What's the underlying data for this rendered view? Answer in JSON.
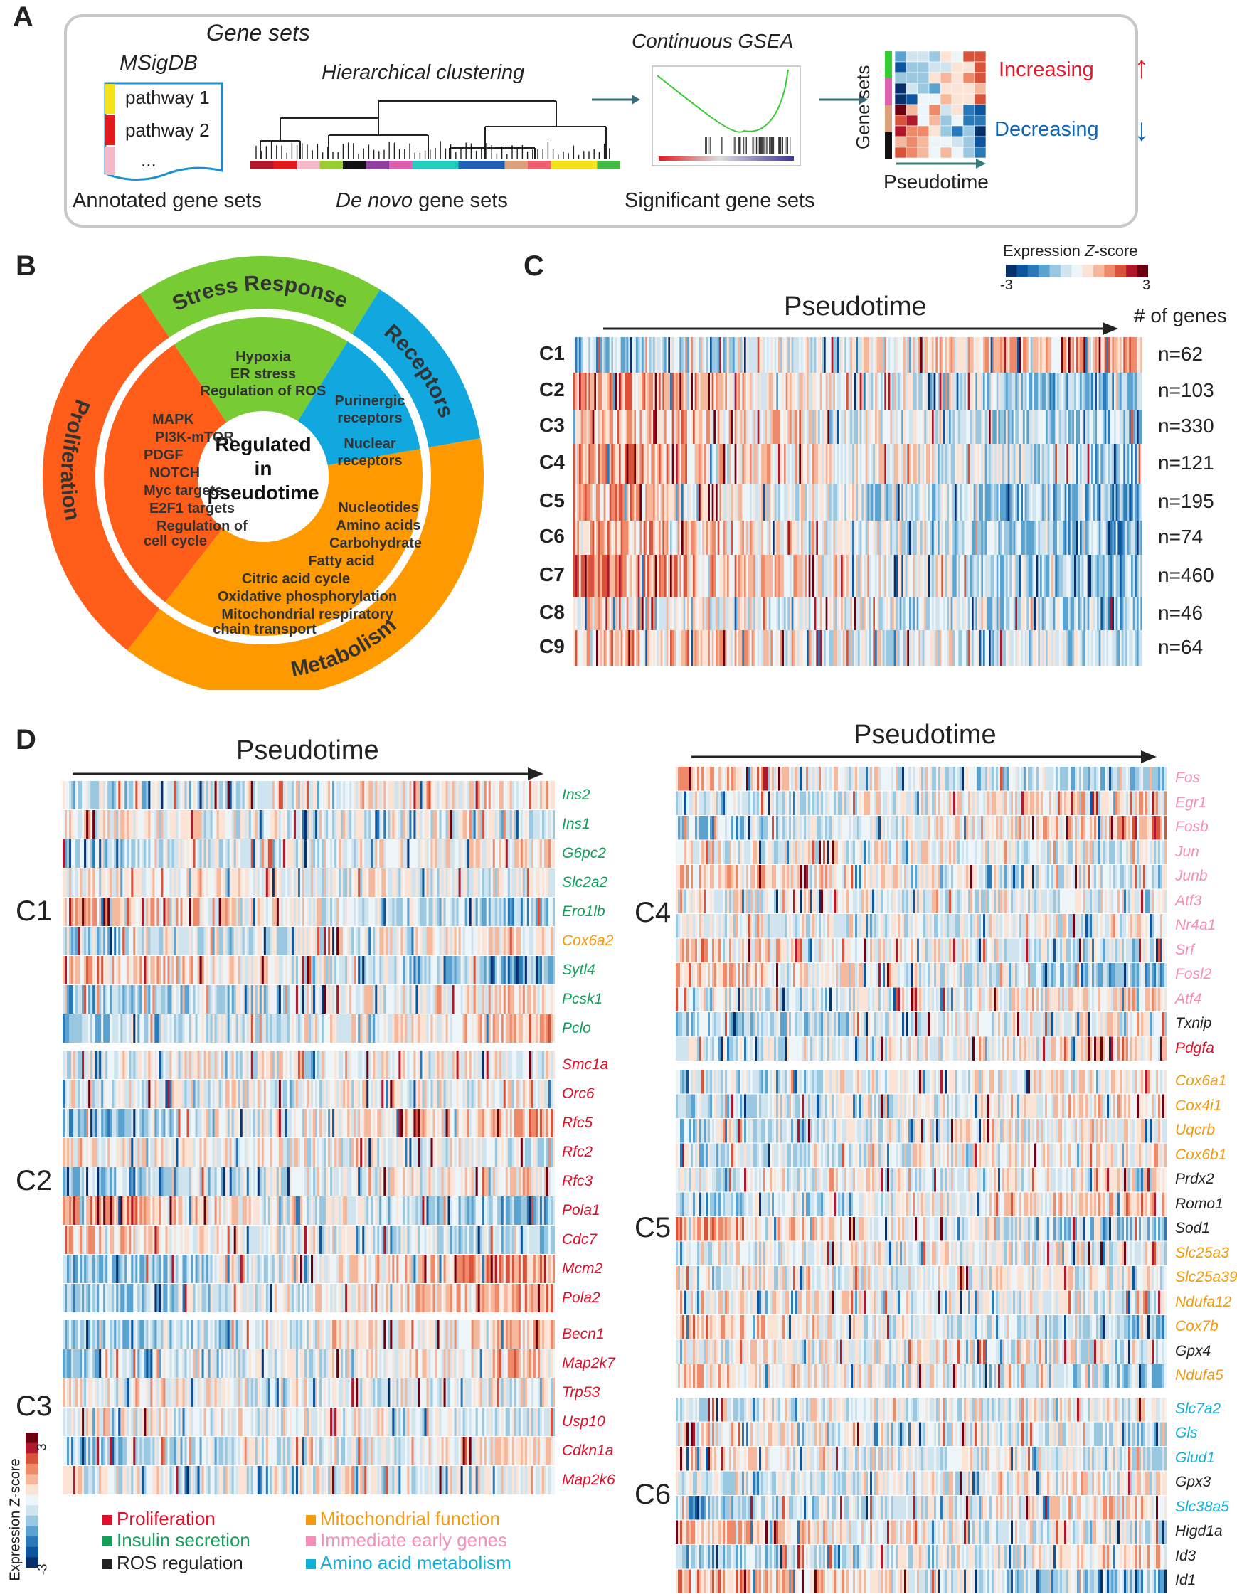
{
  "panels": {
    "a": "A",
    "b": "B",
    "c": "C",
    "d": "D"
  },
  "panelA": {
    "gene_sets": "Gene sets",
    "msigdb": "MSigDB",
    "pathway1": "pathway 1",
    "pathway2": "pathway 2",
    "ellipsis": "...",
    "annotated": "Annotated gene sets",
    "hier": "Hierarchical clustering",
    "denovo_italic": "De novo",
    "denovo_rest": " gene sets",
    "gsea": "Continuous GSEA",
    "significant": "Significant gene sets",
    "gene_sets_axis": "Gene sets",
    "pseudotime": "Pseudotime",
    "increasing": "Increasing",
    "decreasing": "Decreasing",
    "inc_arrow": "↑",
    "dec_arrow": "↓",
    "colors": {
      "red": "#e31a1c",
      "blue": "#1f78b4",
      "green": "#33cc33",
      "yellow": "#f5e21a"
    }
  },
  "panelB": {
    "center": [
      "Regulated",
      "in",
      "pseudotime"
    ],
    "outer": {
      "stress": "Stress Response",
      "receptors": "Receptors",
      "metabolism": "Metabolism",
      "proliferation": "Proliferation"
    },
    "stress_items": [
      "Hypoxia",
      "ER stress",
      "Regulation of ROS"
    ],
    "receptor_items": [
      "Purinergic",
      "receptors",
      "Nuclear",
      "receptors"
    ],
    "proliferation_items": [
      "MAPK",
      "PI3K-mTOR",
      "PDGF",
      "NOTCH",
      "Myc targets",
      "E2F1 targets",
      "Regulation of",
      "cell cycle"
    ],
    "metabolism_items": [
      "Nucleotides",
      "Amino acids",
      "Carbohydrate",
      "Fatty acid",
      "Citric acid cycle",
      "Oxidative phosphorylation",
      "Mitochondrial respiratory",
      "chain transport"
    ],
    "colors": {
      "stress": "#77cc33",
      "receptors": "#11a8e0",
      "metabolism": "#ff9900",
      "proliferation": "#ff5e1a"
    }
  },
  "panelC": {
    "legend_title_pre": "Expression ",
    "legend_title_z": "Z",
    "legend_title_post": "-score",
    "legend_min": "-3",
    "legend_max": "3",
    "pseudotime": "Pseudotime",
    "ngenes_header": "# of genes",
    "rows": [
      {
        "cluster": "C1",
        "n": "n=62"
      },
      {
        "cluster": "C2",
        "n": "n=103"
      },
      {
        "cluster": "C3",
        "n": "n=330"
      },
      {
        "cluster": "C4",
        "n": "n=121"
      },
      {
        "cluster": "C5",
        "n": "n=195"
      },
      {
        "cluster": "C6",
        "n": "n=74"
      },
      {
        "cluster": "C7",
        "n": "n=460"
      },
      {
        "cluster": "C8",
        "n": "n=46"
      },
      {
        "cluster": "C9",
        "n": "n=64"
      }
    ]
  },
  "panelD": {
    "pseudotime": "Pseudotime",
    "legend_z_label": "Expression Z-score",
    "legend_max": "3",
    "legend_min": "-3",
    "categories": [
      {
        "label": "Proliferation",
        "color": "#e0102a"
      },
      {
        "label": "Insulin secretion",
        "color": "#12a05a"
      },
      {
        "label": "ROS regulation",
        "color": "#222222"
      },
      {
        "label": "Mitochondrial function",
        "color": "#f29a10"
      },
      {
        "label": "Immediate early genes",
        "color": "#f38fb8"
      },
      {
        "label": "Amino acid metabolism",
        "color": "#12b0d8"
      }
    ],
    "left_clusters": [
      {
        "name": "C1",
        "genes": [
          {
            "g": "Ins2",
            "c": 1
          },
          {
            "g": "Ins1",
            "c": 1
          },
          {
            "g": "G6pc2",
            "c": 1
          },
          {
            "g": "Slc2a2",
            "c": 1
          },
          {
            "g": "Ero1lb",
            "c": 1
          },
          {
            "g": "Cox6a2",
            "c": 3
          },
          {
            "g": "Sytl4",
            "c": 1
          },
          {
            "g": "Pcsk1",
            "c": 1
          },
          {
            "g": "Pclo",
            "c": 1
          }
        ]
      },
      {
        "name": "C2",
        "genes": [
          {
            "g": "Smc1a",
            "c": 0
          },
          {
            "g": "Orc6",
            "c": 0
          },
          {
            "g": "Rfc5",
            "c": 0
          },
          {
            "g": "Rfc2",
            "c": 0
          },
          {
            "g": "Rfc3",
            "c": 0
          },
          {
            "g": "Pola1",
            "c": 0
          },
          {
            "g": "Cdc7",
            "c": 0
          },
          {
            "g": "Mcm2",
            "c": 0
          },
          {
            "g": "Pola2",
            "c": 0
          }
        ]
      },
      {
        "name": "C3",
        "genes": [
          {
            "g": "Becn1",
            "c": 0
          },
          {
            "g": "Map2k7",
            "c": 0
          },
          {
            "g": "Trp53",
            "c": 0
          },
          {
            "g": "Usp10",
            "c": 0
          },
          {
            "g": "Cdkn1a",
            "c": 0
          },
          {
            "g": "Map2k6",
            "c": 0
          }
        ]
      }
    ],
    "right_clusters": [
      {
        "name": "C4",
        "genes": [
          {
            "g": "Fos",
            "c": 4
          },
          {
            "g": "Egr1",
            "c": 4
          },
          {
            "g": "Fosb",
            "c": 4
          },
          {
            "g": "Jun",
            "c": 4
          },
          {
            "g": "Junb",
            "c": 4
          },
          {
            "g": "Atf3",
            "c": 4
          },
          {
            "g": "Nr4a1",
            "c": 4
          },
          {
            "g": "Srf",
            "c": 4
          },
          {
            "g": "Fosl2",
            "c": 4
          },
          {
            "g": "Atf4",
            "c": 4
          },
          {
            "g": "Txnip",
            "c": 2
          },
          {
            "g": "Pdgfa",
            "c": 0
          }
        ]
      },
      {
        "name": "C5",
        "genes": [
          {
            "g": "Cox6a1",
            "c": 3
          },
          {
            "g": "Cox4i1",
            "c": 3
          },
          {
            "g": "Uqcrb",
            "c": 3
          },
          {
            "g": "Cox6b1",
            "c": 3
          },
          {
            "g": "Prdx2",
            "c": 2
          },
          {
            "g": "Romo1",
            "c": 2
          },
          {
            "g": "Sod1",
            "c": 2
          },
          {
            "g": "Slc25a3",
            "c": 3
          },
          {
            "g": "Slc25a39",
            "c": 3
          },
          {
            "g": "Ndufa12",
            "c": 3
          },
          {
            "g": "Cox7b",
            "c": 3
          },
          {
            "g": "Gpx4",
            "c": 2
          },
          {
            "g": "Ndufa5",
            "c": 3
          }
        ]
      },
      {
        "name": "C6",
        "genes": [
          {
            "g": "Slc7a2",
            "c": 5
          },
          {
            "g": "Gls",
            "c": 5
          },
          {
            "g": "Glud1",
            "c": 5
          },
          {
            "g": "Gpx3",
            "c": 2
          },
          {
            "g": "Slc38a5",
            "c": 5
          },
          {
            "g": "Higd1a",
            "c": 2
          },
          {
            "g": "Id3",
            "c": 2
          },
          {
            "g": "Id1",
            "c": 2
          }
        ]
      }
    ]
  }
}
